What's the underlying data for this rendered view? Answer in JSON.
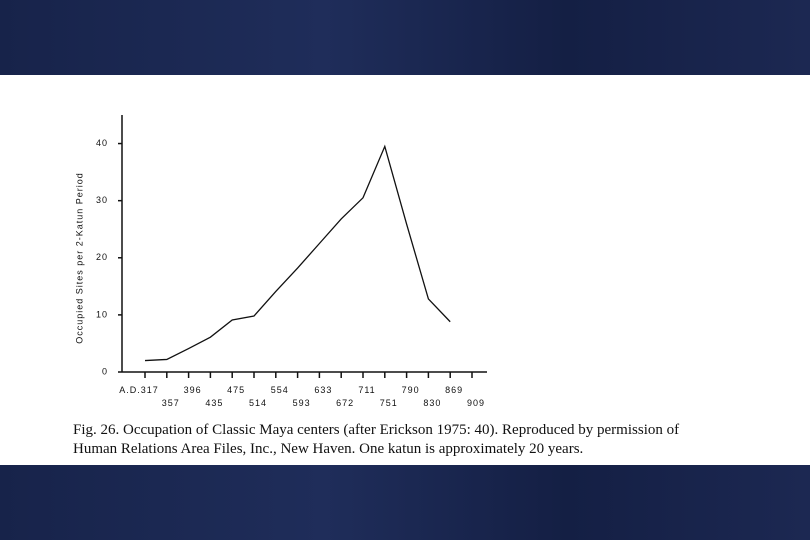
{
  "chart_data": {
    "type": "line",
    "ylabel": "Occupied Sites per 2-Katun Period",
    "categories": [
      "A.D.317",
      "357",
      "396",
      "435",
      "475",
      "514",
      "554",
      "593",
      "633",
      "672",
      "711",
      "751",
      "790",
      "830",
      "869",
      "909"
    ],
    "values": [
      2,
      2.2,
      4.1,
      6.1,
      9.1,
      9.8,
      14.1,
      18.2,
      22.5,
      26.8,
      30.5,
      39.5,
      25.9,
      12.8,
      8.8,
      null
    ],
    "color": "#111111",
    "ylim": [
      0,
      45
    ],
    "yticks": [
      0,
      10,
      20,
      30,
      40
    ],
    "caption_line1": "Fig. 26. Occupation of Classic Maya centers (after Erickson 1975: 40). Reproduced by permission of",
    "caption_line2": "Human Relations Area Files, Inc., New Haven. One katun is approximately 20 years."
  }
}
